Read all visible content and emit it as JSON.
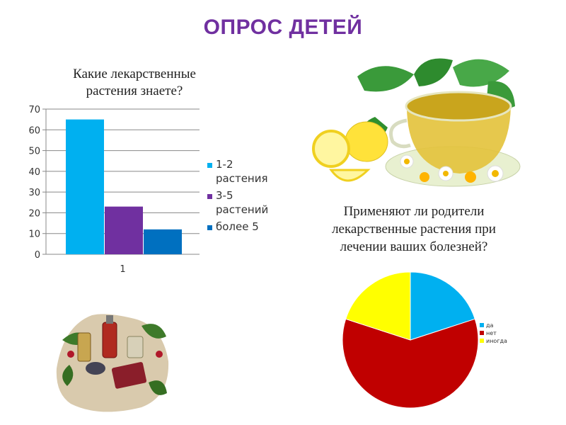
{
  "slide_title": "ОПРОС ДЕТЕЙ",
  "chart_data": [
    {
      "type": "bar",
      "title": "Какие лекарственные растения знаете?",
      "categories": [
        "1"
      ],
      "series": [
        {
          "name": "1-2 растения",
          "values": [
            65
          ],
          "color": "#00b0f0"
        },
        {
          "name": "3-5 растений",
          "values": [
            23
          ],
          "color": "#7030a0"
        },
        {
          "name": "более 5",
          "values": [
            12
          ],
          "color": "#0070c0"
        }
      ],
      "legend_lines": [
        [
          "1-2",
          "растения"
        ],
        [
          "3-5",
          "растений"
        ],
        [
          "более 5"
        ]
      ],
      "ylim": [
        0,
        70
      ],
      "yticks": [
        "0",
        "10",
        "20",
        "30",
        "40",
        "50",
        "60",
        "70"
      ],
      "grid": true,
      "legend": "right"
    },
    {
      "type": "pie",
      "title": "Применяют ли родители лекарственные растения при лечении ваших болезней?",
      "labels": [
        "да",
        "нет",
        "иногда"
      ],
      "values": [
        20,
        60,
        20
      ],
      "colors": [
        "#00b0f0",
        "#c00000",
        "#ffff00"
      ],
      "legend": "right"
    }
  ],
  "images": [
    {
      "name": "tea-lemon-image",
      "description_icon": "tea-cup-with-lemon-and-mint"
    },
    {
      "name": "herbal-medicine-image",
      "description_icon": "herbal-bottles-and-leaves"
    }
  ]
}
